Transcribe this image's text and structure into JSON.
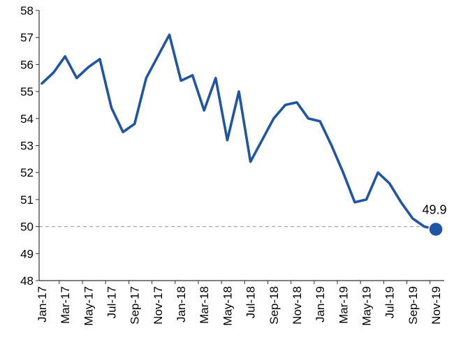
{
  "chart_data": {
    "type": "line",
    "title": "",
    "xlabel": "",
    "ylabel": "",
    "ylim": [
      48,
      58
    ],
    "yticks": [
      48,
      49,
      50,
      51,
      52,
      53,
      54,
      55,
      56,
      57,
      58
    ],
    "grid": false,
    "x": [
      "Jan-17",
      "Feb-17",
      "Mar-17",
      "Apr-17",
      "May-17",
      "Jun-17",
      "Jul-17",
      "Aug-17",
      "Sep-17",
      "Oct-17",
      "Nov-17",
      "Dec-17",
      "Jan-18",
      "Feb-18",
      "Mar-18",
      "Apr-18",
      "May-18",
      "Jun-18",
      "Jul-18",
      "Aug-18",
      "Sep-18",
      "Oct-18",
      "Nov-18",
      "Dec-18",
      "Jan-19",
      "Feb-19",
      "Mar-19",
      "Apr-19",
      "May-19",
      "Jun-19",
      "Jul-19",
      "Aug-19",
      "Sep-19",
      "Oct-19",
      "Nov-19"
    ],
    "xtick_labels": [
      "Jan-17",
      "Mar-17",
      "May-17",
      "Jul-17",
      "Sep-17",
      "Nov-17",
      "Jan-18",
      "Mar-18",
      "May-18",
      "Jul-18",
      "Sep-18",
      "Nov-18",
      "Jan-19",
      "Mar-19",
      "May-19",
      "Jul-19",
      "Sep-19",
      "Nov-19"
    ],
    "series": [
      {
        "values": [
          55.3,
          55.7,
          56.3,
          55.5,
          55.9,
          56.2,
          54.4,
          53.5,
          53.8,
          55.5,
          56.3,
          57.1,
          55.4,
          55.6,
          54.3,
          55.5,
          53.2,
          55.0,
          52.4,
          53.2,
          54.0,
          54.5,
          54.6,
          54.0,
          53.9,
          53.0,
          52.0,
          50.9,
          51.0,
          52.0,
          51.6,
          50.9,
          50.3,
          50.0,
          49.9
        ],
        "color": "#1f55a4"
      }
    ],
    "reference_line": {
      "y": 50,
      "style": "dashed",
      "color": "#aaaaaa"
    },
    "highlight_point": {
      "x": "Nov-19",
      "y": 49.9,
      "label": "49.9",
      "color": "#1f55a4"
    }
  }
}
